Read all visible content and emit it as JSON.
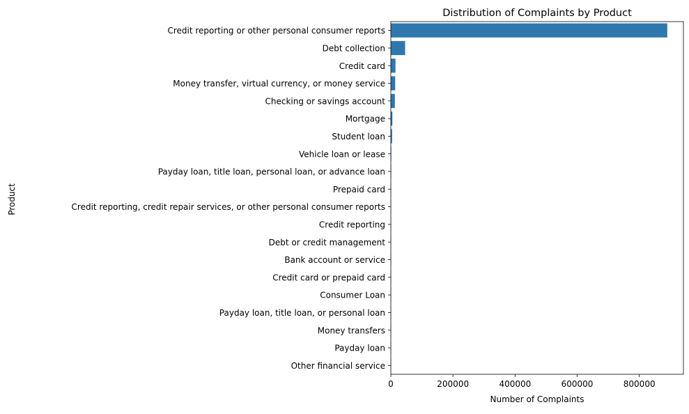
{
  "chart_data": {
    "type": "bar",
    "orientation": "horizontal",
    "title": "Distribution of Complaints by Product",
    "xlabel": "Number of Complaints",
    "ylabel": "Product",
    "categories": [
      "Credit reporting or other personal consumer reports",
      "Debt collection",
      "Credit card",
      "Money transfer, virtual currency, or money service",
      "Checking or savings account",
      "Mortgage",
      "Student loan",
      "Vehicle loan or lease",
      "Payday loan, title loan, personal loan, or advance loan",
      "Prepaid card",
      "Credit reporting, credit repair services, or other personal consumer reports",
      "Credit reporting",
      "Debt or credit management",
      "Bank account or service",
      "Credit card or prepaid card",
      "Consumer Loan",
      "Payday loan, title loan, or personal loan",
      "Money transfers",
      "Payday loan",
      "Other financial service"
    ],
    "values": [
      890000,
      46000,
      15000,
      14000,
      13000,
      5000,
      4000,
      1500,
      1200,
      800,
      600,
      400,
      300,
      250,
      200,
      150,
      120,
      80,
      50,
      30
    ],
    "xlim": [
      0,
      942000
    ],
    "xticks": [
      0,
      200000,
      400000,
      600000,
      800000
    ],
    "xtick_labels": [
      "0",
      "200000",
      "400000",
      "600000",
      "800000"
    ],
    "grid": false,
    "bar_color": "#2e78ae"
  }
}
